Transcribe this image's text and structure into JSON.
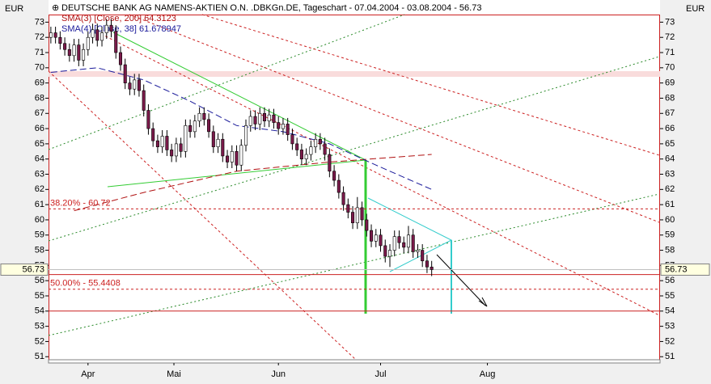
{
  "chart_data": {
    "type": "candlestick",
    "title": "DEUTSCHE BANK AG NAMENS-AKTIEN O.N. .DBKGn.DE, Tageschart - 07.04.2004 - 03.08.2004 - 56.73",
    "unit_label": "EUR",
    "last_price": 56.73,
    "ylim": [
      50.8,
      73.5
    ],
    "yticks": [
      51,
      52,
      53,
      54,
      55,
      56,
      57,
      58,
      59,
      60,
      61,
      62,
      63,
      64,
      65,
      66,
      67,
      68,
      69,
      70,
      71,
      72,
      73
    ],
    "xlim": [
      -0.5,
      131
    ],
    "xticks": [
      {
        "value": 8,
        "label": "Apr"
      },
      {
        "value": 26.5,
        "label": "Mai"
      },
      {
        "value": 49,
        "label": "Jun"
      },
      {
        "value": 71,
        "label": "Jul"
      },
      {
        "value": 94,
        "label": "Aug"
      }
    ],
    "open": [
      72.0,
      72.3,
      72.0,
      71.6,
      71.2,
      70.8,
      71.5,
      70.5,
      71.2,
      72.0,
      72.5,
      71.8,
      72.3,
      72.8,
      72.4,
      71.0,
      70.2,
      69.0,
      68.6,
      69.2,
      68.5,
      67.2,
      66.0,
      65.2,
      64.8,
      65.5,
      64.6,
      64.2,
      65.0,
      64.5,
      66.2,
      65.8,
      66.5,
      67.0,
      66.6,
      65.8,
      64.8,
      65.3,
      64.2,
      63.8,
      64.5,
      63.6,
      64.9,
      66.2,
      66.8,
      66.3,
      67.0,
      66.5,
      66.9,
      66.4,
      66.0,
      66.3,
      65.6,
      65.0,
      64.6,
      64.0,
      64.3,
      64.8,
      65.3,
      65.0,
      64.3,
      63.2,
      62.6,
      61.8,
      61.0,
      60.5,
      59.8,
      60.8,
      60.0,
      59.3,
      58.6,
      59.0,
      58.3,
      57.6,
      58.0,
      58.9,
      58.5,
      58.2,
      59.0,
      57.9,
      58.0,
      57.3,
      56.9
    ],
    "high": [
      72.7,
      72.7,
      72.4,
      72.0,
      71.6,
      71.9,
      71.9,
      71.6,
      72.4,
      72.9,
      72.9,
      72.7,
      73.2,
      73.2,
      72.8,
      71.4,
      70.6,
      69.4,
      69.6,
      69.6,
      68.9,
      67.6,
      66.4,
      65.6,
      65.9,
      65.9,
      65.0,
      65.4,
      65.4,
      66.6,
      66.6,
      66.9,
      67.4,
      67.4,
      67.0,
      66.2,
      65.7,
      65.7,
      64.6,
      64.9,
      64.9,
      65.3,
      66.6,
      67.2,
      67.2,
      67.4,
      67.4,
      67.3,
      67.3,
      66.8,
      66.7,
      66.7,
      66.0,
      65.4,
      65.0,
      64.7,
      65.2,
      65.7,
      65.7,
      65.4,
      64.7,
      63.6,
      63.0,
      62.2,
      61.4,
      60.9,
      61.5,
      61.2,
      60.4,
      59.7,
      59.4,
      59.4,
      58.7,
      58.4,
      59.3,
      59.3,
      58.9,
      59.6,
      59.4,
      58.4,
      58.4,
      57.7,
      57.3
    ],
    "low": [
      71.6,
      71.6,
      71.2,
      70.8,
      70.4,
      70.4,
      70.1,
      70.1,
      70.8,
      71.6,
      71.4,
      71.4,
      71.9,
      72.0,
      70.6,
      69.8,
      68.6,
      68.2,
      68.2,
      68.1,
      66.8,
      65.6,
      64.8,
      64.4,
      64.4,
      64.2,
      63.8,
      63.8,
      64.1,
      64.1,
      65.4,
      65.4,
      66.1,
      66.2,
      65.4,
      64.4,
      64.4,
      63.8,
      63.4,
      63.4,
      63.2,
      63.2,
      64.5,
      65.8,
      65.9,
      65.9,
      66.1,
      66.1,
      66.0,
      65.6,
      65.6,
      65.2,
      64.6,
      64.2,
      63.6,
      63.6,
      63.9,
      64.4,
      64.6,
      63.9,
      62.8,
      62.2,
      61.4,
      60.6,
      60.1,
      59.4,
      59.4,
      59.6,
      58.9,
      58.2,
      58.2,
      57.9,
      57.2,
      56.9,
      57.6,
      58.1,
      57.8,
      57.8,
      57.5,
      57.5,
      56.9,
      56.5,
      56.3
    ],
    "close": [
      72.3,
      72.0,
      71.6,
      71.2,
      70.8,
      71.5,
      70.5,
      71.2,
      72.0,
      72.5,
      71.8,
      72.3,
      72.8,
      72.4,
      71.0,
      70.2,
      69.0,
      68.6,
      69.2,
      68.5,
      67.2,
      66.0,
      65.2,
      64.8,
      65.5,
      64.6,
      64.2,
      65.0,
      64.5,
      66.2,
      65.8,
      66.5,
      67.0,
      66.6,
      65.8,
      64.8,
      65.3,
      64.2,
      63.8,
      64.5,
      63.6,
      64.9,
      66.2,
      66.8,
      66.3,
      67.0,
      66.5,
      66.9,
      66.4,
      66.0,
      66.3,
      65.6,
      65.0,
      64.6,
      64.0,
      64.3,
      64.8,
      65.3,
      65.0,
      64.3,
      63.2,
      62.6,
      61.8,
      61.0,
      60.5,
      59.8,
      60.8,
      60.0,
      59.3,
      58.6,
      59.0,
      58.3,
      57.6,
      58.0,
      58.9,
      58.5,
      58.2,
      59.0,
      57.9,
      58.0,
      57.3,
      56.9,
      56.73
    ],
    "up_color": "#ffffff",
    "down_color": "#7a1a4a",
    "series": [
      {
        "name": "SMA(3) [Close, 200] 64.3123",
        "color": "#b01010",
        "x": [
          5,
          20,
          40,
          60,
          82
        ],
        "values": [
          60.6,
          61.8,
          63.2,
          63.8,
          64.3
        ]
      },
      {
        "name": "SMA(4) [Close, 38] 61.678947",
        "color": "#1a1a9a",
        "x": [
          0,
          10,
          20,
          30,
          40,
          50,
          60,
          70,
          82
        ],
        "values": [
          69.7,
          70.0,
          69.2,
          67.8,
          66.2,
          65.8,
          65.0,
          63.6,
          62.0
        ]
      }
    ],
    "levels": [
      {
        "label": "38.20% - 60.72",
        "value": 60.72
      },
      {
        "label": "50.00% - 55.4408",
        "value": 55.4408
      }
    ],
    "hlines": [
      56.4,
      54
    ]
  }
}
